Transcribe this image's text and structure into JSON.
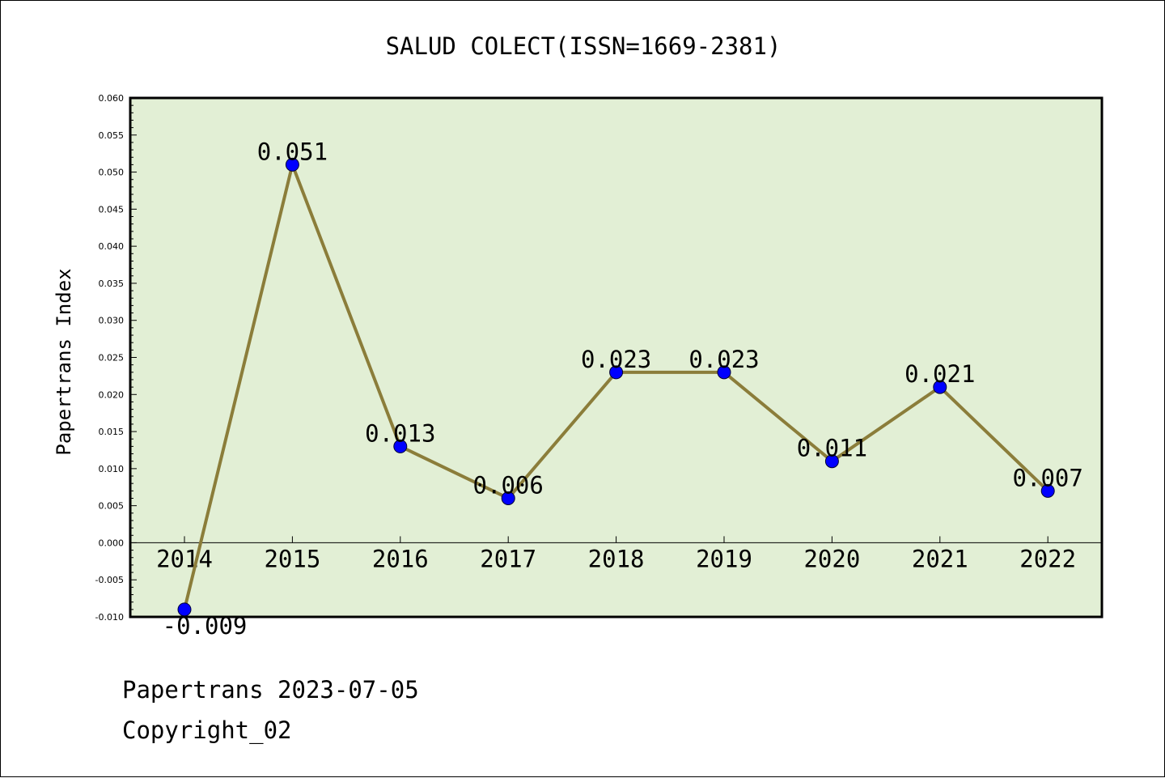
{
  "chart_data": {
    "type": "line",
    "title": "SALUD COLECT(ISSN=1669-2381)",
    "xlabel": "",
    "ylabel": "Papertrans Index",
    "categories": [
      "2014",
      "2015",
      "2016",
      "2017",
      "2018",
      "2019",
      "2020",
      "2021",
      "2022"
    ],
    "series": [
      {
        "values": [
          -0.009,
          0.051,
          0.013,
          0.006,
          0.023,
          0.023,
          0.011,
          0.021,
          0.007
        ],
        "labels": [
          "-0.009",
          "0.051",
          "0.013",
          "0.006",
          "0.023",
          "0.023",
          "0.011",
          "0.021",
          "0.007"
        ],
        "line_color": "#8b7d3a",
        "marker_color": "#0000ff"
      }
    ],
    "ylim": [
      -0.01,
      0.06
    ],
    "yticks": [
      "-0.010",
      "-0.005",
      "0.000",
      "0.005",
      "0.010",
      "0.015",
      "0.020",
      "0.025",
      "0.030",
      "0.035",
      "0.040",
      "0.045",
      "0.050",
      "0.055",
      "0.060"
    ],
    "ytick_values": [
      -0.01,
      -0.005,
      0,
      0.005,
      0.01,
      0.015,
      0.02,
      0.025,
      0.03,
      0.035,
      0.04,
      0.045,
      0.05,
      0.055,
      0.06
    ],
    "plot_background": "#e2efd5",
    "grid": false,
    "legend": "none"
  },
  "footer": {
    "source": "Papertrans 2023-07-05",
    "copyright": "Copyright_02"
  }
}
